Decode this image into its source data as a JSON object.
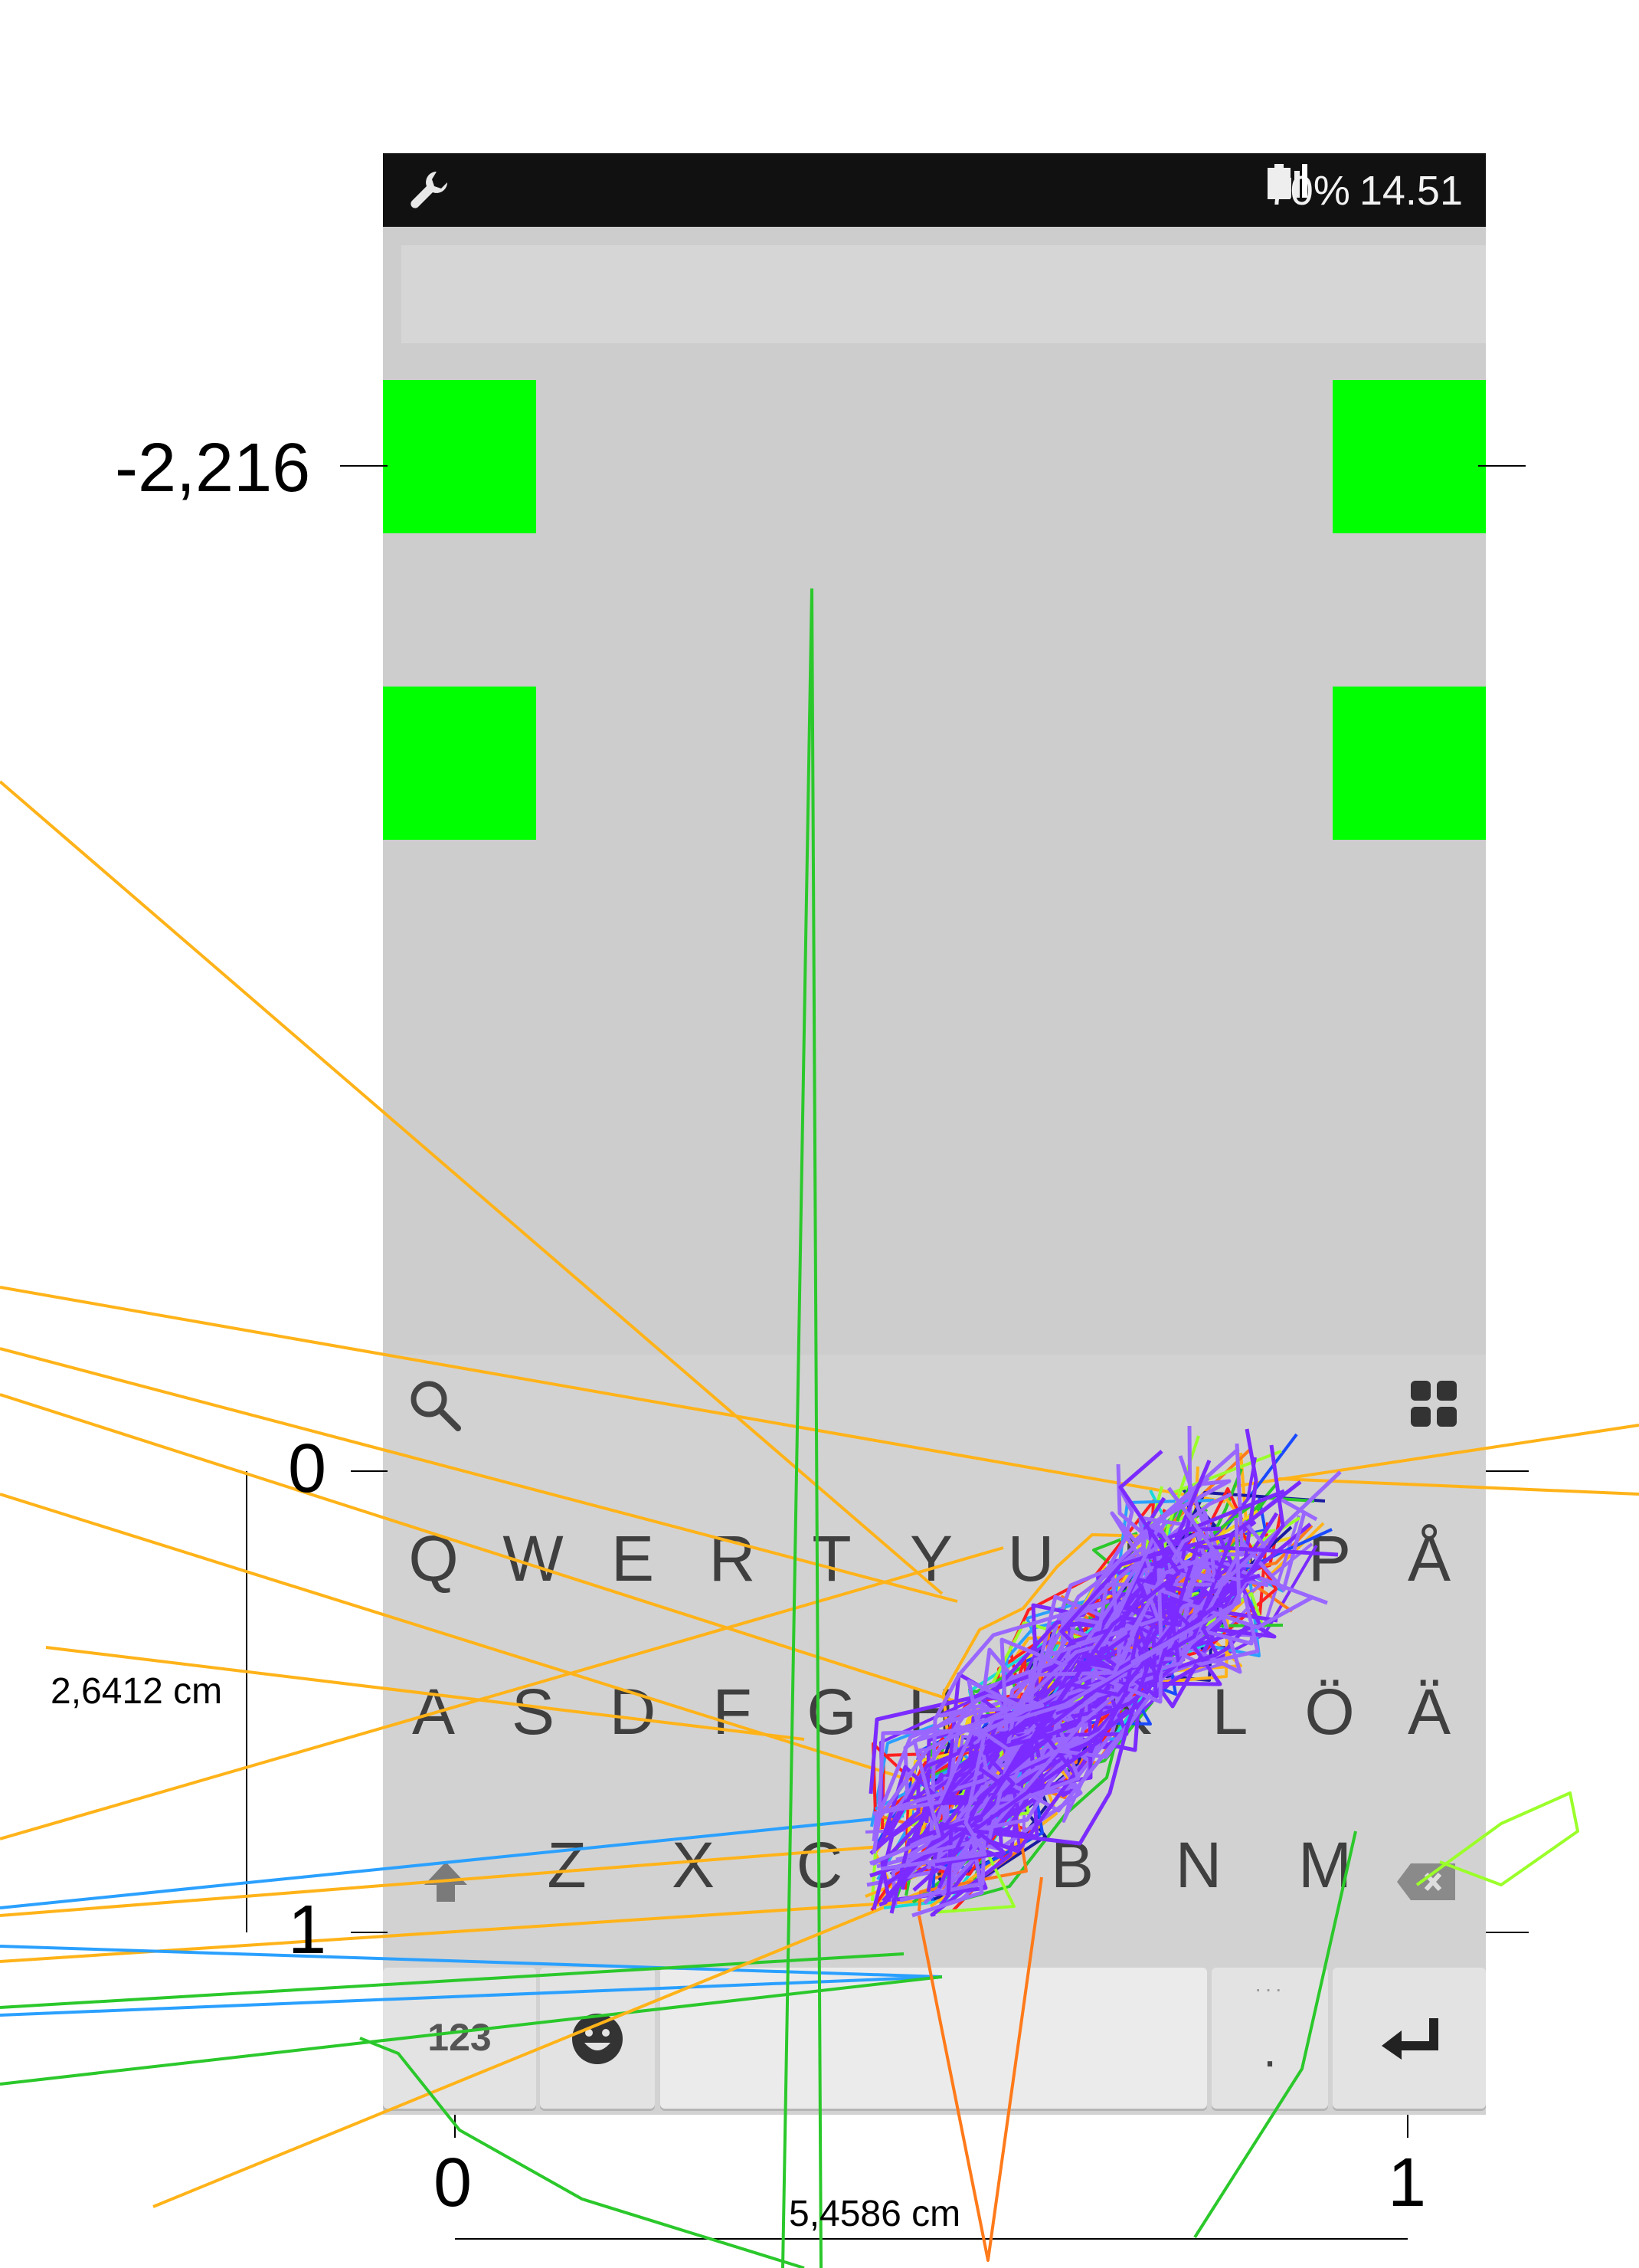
{
  "status_bar": {
    "signal": "signal-icon",
    "battery_percent": "70%",
    "battery_icon": "battery-icon",
    "time": "14.51",
    "left_icon": "wrench-icon"
  },
  "keyboard": {
    "search_icon": "search-icon",
    "menu_icon": "grid-menu-icon",
    "row1": [
      "Q",
      "W",
      "E",
      "R",
      "T",
      "Y",
      "U",
      "I",
      "O",
      "P",
      "Å"
    ],
    "row2": [
      "A",
      "S",
      "D",
      "F",
      "G",
      "H",
      "J",
      "K",
      "L",
      "Ö",
      "Ä"
    ],
    "row3": [
      "Z",
      "X",
      "C",
      "V",
      "B",
      "N",
      "M"
    ],
    "shift_icon": "shift-icon",
    "backspace_icon": "backspace-icon",
    "numbers_key": "123",
    "emoji_icon": "emoji-icon",
    "period_key": ".",
    "enter_icon": "enter-icon"
  },
  "annotations": {
    "y_marker_top": "-2,216",
    "y_tick_0": "0",
    "y_tick_1": "1",
    "x_tick_0": "0",
    "x_tick_1": "1",
    "height_measure": "2,6412 cm",
    "width_measure": "5,4586 cm"
  },
  "colors": {
    "target_green": "#00ff00",
    "trace_palette": [
      "#ff2020",
      "#ff7a1a",
      "#ffb319",
      "#f2d21a",
      "#9bff2a",
      "#2bc82b",
      "#1ad9d9",
      "#2aa0ff",
      "#1a4aff",
      "#1a1aa0",
      "#7b2bff",
      "#9966ff"
    ]
  }
}
